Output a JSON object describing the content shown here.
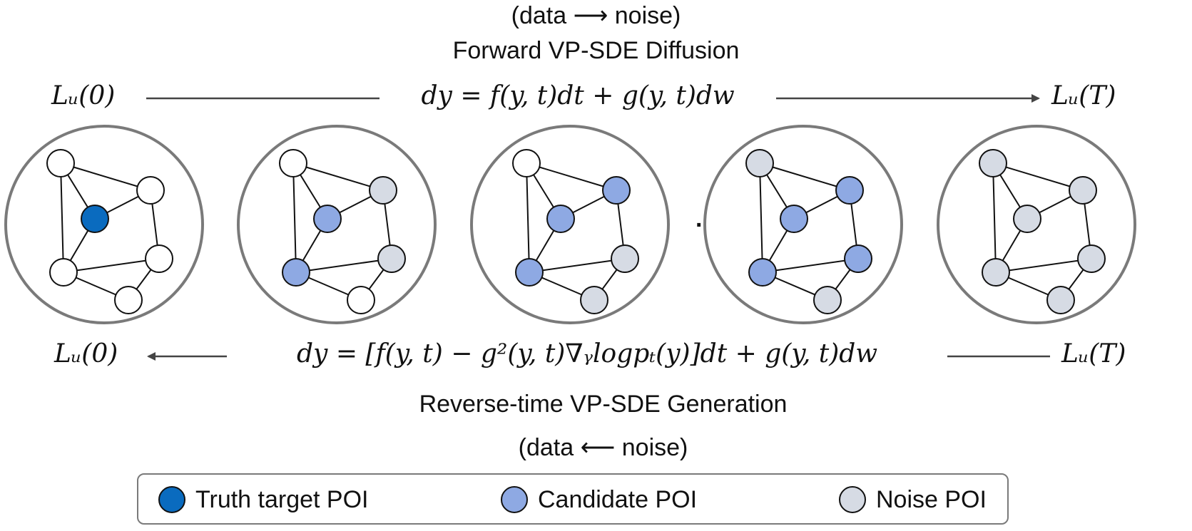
{
  "forward": {
    "direction": "(data ⟶ noise)",
    "title": "Forward VP-SDE Diffusion",
    "equation": "dy = f(y, t)dt + g(y, t)dw",
    "start_label": "Lᵤ(0)",
    "end_label": "Lᵤ(T)"
  },
  "reverse": {
    "direction": "(data ⟵ noise)",
    "title": "Reverse-time VP-SDE Generation",
    "equation": "dy = [f(y, t) − g²(y, t)∇ᵧlogpₜ(y)]dt + g(y, t)dw",
    "start_label": "Lᵤ(0)",
    "end_label": "Lᵤ(T)"
  },
  "ellipsis": "...",
  "legend": {
    "items": [
      {
        "label": "Truth target POI",
        "color": "#0a6bbf"
      },
      {
        "label": "Candidate POI",
        "color": "#8ea9e3"
      },
      {
        "label": "Noise POI",
        "color": "#d6dbe4"
      }
    ]
  },
  "colors": {
    "truth": "#0a6bbf",
    "candidate": "#8ea9e3",
    "noise": "#d6dbe4",
    "empty": "#ffffff",
    "stroke": "#111111",
    "ring": "#7a7a7a",
    "arrow": "#444444"
  },
  "graphs": [
    {
      "states": [
        "empty",
        "empty",
        "truth",
        "empty",
        "empty",
        "empty"
      ]
    },
    {
      "states": [
        "empty",
        "noise",
        "candidate",
        "noise",
        "candidate",
        "empty"
      ]
    },
    {
      "states": [
        "empty",
        "candidate",
        "candidate",
        "noise",
        "candidate",
        "noise"
      ]
    },
    {
      "states": [
        "noise",
        "candidate",
        "candidate",
        "candidate",
        "candidate",
        "noise"
      ]
    },
    {
      "states": [
        "noise",
        "noise",
        "noise",
        "noise",
        "noise",
        "noise"
      ]
    }
  ]
}
